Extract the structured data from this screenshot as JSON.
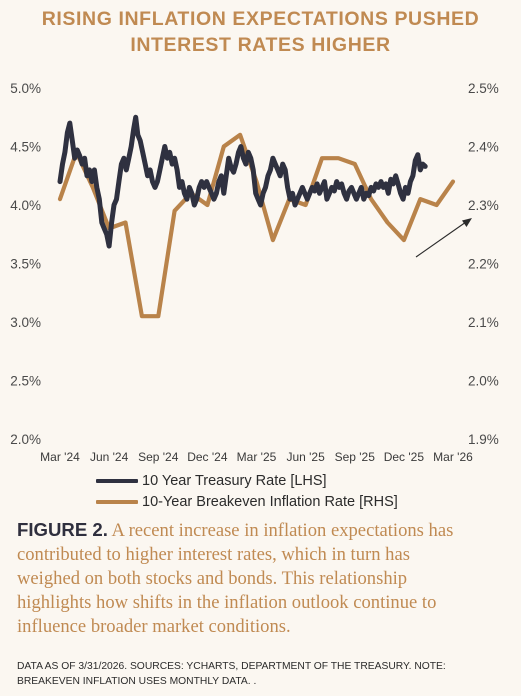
{
  "title": {
    "line1": "RISING INFLATION EXPECTATIONS PUSHED",
    "line2": "INTEREST RATES HIGHER"
  },
  "chart_data": {
    "type": "line",
    "x_labels": [
      "Mar '24",
      "Jun '24",
      "Sep '24",
      "Dec '24",
      "Mar '25",
      "Jun '25",
      "Sep '25",
      "Dec '25",
      "Mar '26"
    ],
    "y_left": {
      "ticks": [
        "2.0%",
        "2.5%",
        "3.0%",
        "3.5%",
        "4.0%",
        "4.5%",
        "5.0%"
      ],
      "range": [
        2.0,
        5.0
      ]
    },
    "y_right": {
      "ticks": [
        "1.9%",
        "2.0%",
        "2.1%",
        "2.2%",
        "2.3%",
        "2.4%",
        "2.5%"
      ],
      "range": [
        1.9,
        2.5
      ]
    },
    "series": [
      {
        "name": "10 Year Treasury Rate [LHS]",
        "axis": "left",
        "color": "#2f3140",
        "points": [
          [
            0.0,
            4.2
          ],
          [
            0.15,
            4.35
          ],
          [
            0.3,
            4.45
          ],
          [
            0.45,
            4.62
          ],
          [
            0.6,
            4.7
          ],
          [
            0.75,
            4.55
          ],
          [
            0.9,
            4.4
          ],
          [
            1.05,
            4.47
          ],
          [
            1.2,
            4.42
          ],
          [
            1.35,
            4.35
          ],
          [
            1.5,
            4.4
          ],
          [
            1.65,
            4.25
          ],
          [
            1.8,
            4.3
          ],
          [
            1.95,
            4.2
          ],
          [
            2.1,
            4.3
          ],
          [
            2.25,
            4.15
          ],
          [
            2.4,
            4.05
          ],
          [
            2.55,
            3.85
          ],
          [
            2.7,
            3.8
          ],
          [
            2.85,
            3.75
          ],
          [
            3.0,
            3.65
          ],
          [
            3.15,
            3.85
          ],
          [
            3.3,
            4.0
          ],
          [
            3.45,
            4.05
          ],
          [
            3.6,
            4.2
          ],
          [
            3.75,
            4.35
          ],
          [
            3.9,
            4.4
          ],
          [
            4.05,
            4.3
          ],
          [
            4.2,
            4.4
          ],
          [
            4.35,
            4.5
          ],
          [
            4.5,
            4.65
          ],
          [
            4.62,
            4.75
          ],
          [
            4.75,
            4.6
          ],
          [
            4.9,
            4.55
          ],
          [
            5.05,
            4.45
          ],
          [
            5.2,
            4.35
          ],
          [
            5.35,
            4.25
          ],
          [
            5.5,
            4.3
          ],
          [
            5.65,
            4.2
          ],
          [
            5.8,
            4.15
          ],
          [
            5.95,
            4.2
          ],
          [
            6.1,
            4.3
          ],
          [
            6.25,
            4.4
          ],
          [
            6.4,
            4.5
          ],
          [
            6.55,
            4.4
          ],
          [
            6.7,
            4.45
          ],
          [
            6.85,
            4.35
          ],
          [
            7.0,
            4.4
          ],
          [
            7.15,
            4.3
          ],
          [
            7.3,
            4.15
          ],
          [
            7.45,
            4.2
          ],
          [
            7.6,
            4.1
          ],
          [
            7.75,
            4.05
          ],
          [
            7.9,
            4.15
          ],
          [
            8.05,
            4.1
          ],
          [
            8.2,
            4.0
          ],
          [
            8.35,
            4.05
          ],
          [
            8.5,
            4.15
          ],
          [
            8.65,
            4.2
          ],
          [
            8.8,
            4.15
          ],
          [
            8.95,
            4.2
          ],
          [
            9.1,
            4.15
          ],
          [
            9.25,
            4.1
          ],
          [
            9.4,
            4.05
          ],
          [
            9.55,
            4.1
          ],
          [
            9.7,
            4.2
          ],
          [
            9.85,
            4.25
          ],
          [
            10.0,
            4.1
          ],
          [
            10.15,
            4.25
          ],
          [
            10.3,
            4.4
          ],
          [
            10.45,
            4.32
          ],
          [
            10.6,
            4.28
          ],
          [
            10.75,
            4.35
          ],
          [
            10.9,
            4.45
          ],
          [
            11.05,
            4.5
          ],
          [
            11.2,
            4.4
          ],
          [
            11.35,
            4.35
          ],
          [
            11.5,
            4.45
          ],
          [
            11.65,
            4.4
          ],
          [
            11.8,
            4.3
          ],
          [
            11.95,
            4.1
          ],
          [
            12.1,
            4.05
          ],
          [
            12.25,
            4.0
          ],
          [
            12.4,
            4.1
          ],
          [
            12.55,
            4.15
          ],
          [
            12.7,
            4.25
          ],
          [
            12.85,
            4.3
          ],
          [
            13.0,
            4.4
          ],
          [
            13.15,
            4.35
          ],
          [
            13.3,
            4.3
          ],
          [
            13.45,
            4.25
          ],
          [
            13.6,
            4.35
          ],
          [
            13.75,
            4.3
          ],
          [
            13.9,
            4.15
          ],
          [
            14.05,
            4.05
          ],
          [
            14.2,
            4.1
          ],
          [
            14.35,
            4.0
          ],
          [
            14.5,
            4.05
          ],
          [
            14.65,
            4.1
          ],
          [
            14.8,
            4.15
          ],
          [
            14.95,
            4.1
          ],
          [
            15.1,
            4.05
          ],
          [
            15.25,
            4.1
          ],
          [
            15.4,
            4.15
          ],
          [
            15.55,
            4.12
          ],
          [
            15.7,
            4.18
          ],
          [
            15.85,
            4.1
          ],
          [
            16.0,
            4.15
          ],
          [
            16.15,
            4.2
          ],
          [
            16.3,
            4.05
          ],
          [
            16.45,
            4.1
          ],
          [
            16.6,
            4.15
          ],
          [
            16.75,
            4.12
          ],
          [
            16.9,
            4.2
          ],
          [
            17.05,
            4.15
          ],
          [
            17.2,
            4.18
          ],
          [
            17.35,
            4.1
          ],
          [
            17.5,
            4.05
          ],
          [
            17.65,
            4.12
          ],
          [
            17.8,
            4.15
          ],
          [
            17.95,
            4.1
          ],
          [
            18.1,
            4.05
          ],
          [
            18.25,
            4.1
          ],
          [
            18.4,
            4.15
          ],
          [
            18.55,
            4.05
          ],
          [
            18.7,
            4.1
          ],
          [
            18.85,
            4.08
          ],
          [
            19.0,
            4.15
          ],
          [
            19.15,
            4.12
          ],
          [
            19.3,
            4.18
          ],
          [
            19.45,
            4.15
          ],
          [
            19.6,
            4.2
          ],
          [
            19.75,
            4.15
          ],
          [
            19.9,
            4.18
          ],
          [
            20.05,
            4.1
          ],
          [
            20.2,
            4.22
          ],
          [
            20.35,
            4.18
          ],
          [
            20.5,
            4.25
          ],
          [
            20.65,
            4.18
          ],
          [
            20.8,
            4.1
          ],
          [
            20.95,
            4.05
          ],
          [
            21.1,
            4.15
          ],
          [
            21.25,
            4.1
          ],
          [
            21.4,
            4.2
          ],
          [
            21.55,
            4.25
          ],
          [
            21.7,
            4.38
          ],
          [
            21.85,
            4.43
          ],
          [
            22.0,
            4.3
          ],
          [
            22.15,
            4.35
          ],
          [
            22.3,
            4.33
          ]
        ]
      },
      {
        "name": "10-Year Breakeven Inflation Rate [RHS]",
        "axis": "right",
        "color": "#b9834a",
        "points": [
          [
            0,
            2.31
          ],
          [
            1,
            2.39
          ],
          [
            2,
            2.33
          ],
          [
            3,
            2.26
          ],
          [
            4,
            2.27
          ],
          [
            5,
            2.11
          ],
          [
            6,
            2.11
          ],
          [
            7,
            2.29
          ],
          [
            8,
            2.32
          ],
          [
            9,
            2.3
          ],
          [
            10,
            2.4
          ],
          [
            11,
            2.42
          ],
          [
            12,
            2.34
          ],
          [
            13,
            2.24
          ],
          [
            14,
            2.31
          ],
          [
            15,
            2.3
          ],
          [
            16,
            2.38
          ],
          [
            17,
            2.38
          ],
          [
            18,
            2.37
          ],
          [
            19,
            2.31
          ],
          [
            20,
            2.27
          ],
          [
            21,
            2.24
          ],
          [
            22,
            2.31
          ],
          [
            23,
            2.3
          ],
          [
            24,
            2.34
          ]
        ]
      }
    ],
    "annotation": "trend-arrow"
  },
  "legend": {
    "treasury_label": "10 Year Treasury Rate [LHS]",
    "breakeven_label": "10-Year Breakeven Inflation Rate [RHS]",
    "treasury_color": "#2f3140",
    "breakeven_color": "#b9834a"
  },
  "caption": {
    "lead": "FIGURE 2.",
    "line1": " A recent increase in inflation expectations has",
    "line2": "contributed to higher interest rates, which in turn has",
    "line3": "weighed on both stocks and bonds. This relationship",
    "line4": "highlights how shifts in the inflation outlook continue to",
    "line5": "influence broader market conditions."
  },
  "note": {
    "line1": "DATA AS OF 3/31/2026. SOURCES: YCHARTS, DEPARTMENT OF THE TREASURY. NOTE:",
    "line2": "BREAKEVEN INFLATION USES MONTHLY DATA. ."
  }
}
